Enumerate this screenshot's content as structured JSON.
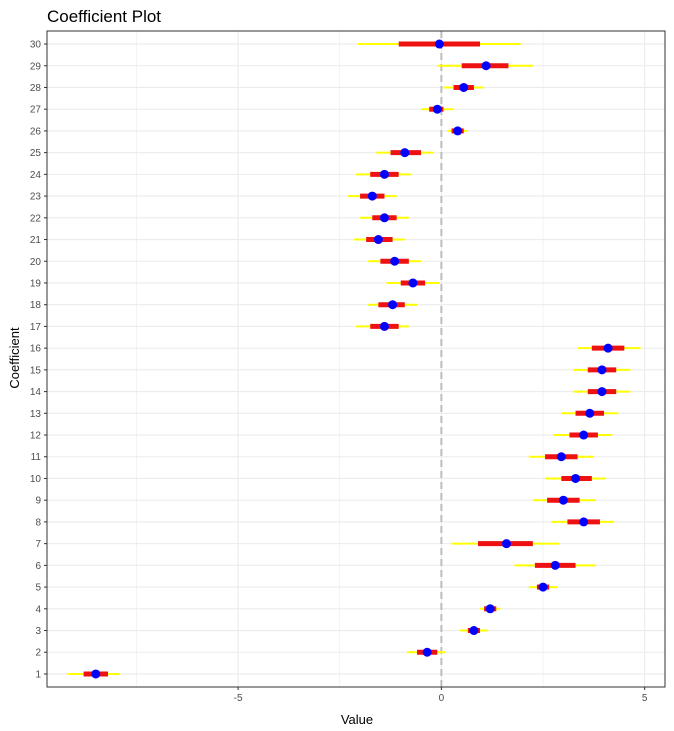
{
  "chart_data": {
    "type": "coefficient-plot",
    "title": "Coefficient Plot",
    "xlabel": "Value",
    "ylabel": "Coefficient",
    "xlim": [
      -9.7,
      5.5
    ],
    "x_ticks": [
      -5,
      0,
      5
    ],
    "x_tick_labels": [
      "-5",
      "0",
      "5"
    ],
    "reference_line_x": 0,
    "grid": true,
    "colors": {
      "point": "#0000ff",
      "inner_interval": "#ee1111",
      "outer_interval": "#ffff00",
      "reference_line": "#bdbdbd",
      "grid": "#ebebeb",
      "panel_border": "#333333"
    },
    "coefficients": [
      {
        "label": "1",
        "estimate": -8.5,
        "inner": [
          -8.8,
          -8.2
        ],
        "outer": [
          -9.2,
          -7.9
        ]
      },
      {
        "label": "2",
        "estimate": -0.35,
        "inner": [
          -0.6,
          -0.1
        ],
        "outer": [
          -0.85,
          0.1
        ]
      },
      {
        "label": "3",
        "estimate": 0.8,
        "inner": [
          0.65,
          0.95
        ],
        "outer": [
          0.45,
          1.15
        ]
      },
      {
        "label": "4",
        "estimate": 1.2,
        "inner": [
          1.05,
          1.35
        ],
        "outer": [
          0.95,
          1.45
        ]
      },
      {
        "label": "5",
        "estimate": 2.5,
        "inner": [
          2.35,
          2.65
        ],
        "outer": [
          2.15,
          2.85
        ]
      },
      {
        "label": "6",
        "estimate": 2.8,
        "inner": [
          2.3,
          3.3
        ],
        "outer": [
          1.8,
          3.8
        ]
      },
      {
        "label": "7",
        "estimate": 1.6,
        "inner": [
          0.9,
          2.25
        ],
        "outer": [
          0.25,
          2.9
        ]
      },
      {
        "label": "8",
        "estimate": 3.5,
        "inner": [
          3.1,
          3.9
        ],
        "outer": [
          2.7,
          4.25
        ]
      },
      {
        "label": "9",
        "estimate": 3.0,
        "inner": [
          2.6,
          3.4
        ],
        "outer": [
          2.25,
          3.8
        ]
      },
      {
        "label": "10",
        "estimate": 3.3,
        "inner": [
          2.95,
          3.7
        ],
        "outer": [
          2.55,
          4.05
        ]
      },
      {
        "label": "11",
        "estimate": 2.95,
        "inner": [
          2.55,
          3.35
        ],
        "outer": [
          2.15,
          3.75
        ]
      },
      {
        "label": "12",
        "estimate": 3.5,
        "inner": [
          3.15,
          3.85
        ],
        "outer": [
          2.75,
          4.2
        ]
      },
      {
        "label": "13",
        "estimate": 3.65,
        "inner": [
          3.3,
          4.0
        ],
        "outer": [
          2.95,
          4.35
        ]
      },
      {
        "label": "14",
        "estimate": 3.95,
        "inner": [
          3.6,
          4.3
        ],
        "outer": [
          3.25,
          4.65
        ]
      },
      {
        "label": "15",
        "estimate": 3.95,
        "inner": [
          3.6,
          4.3
        ],
        "outer": [
          3.25,
          4.65
        ]
      },
      {
        "label": "16",
        "estimate": 4.1,
        "inner": [
          3.7,
          4.5
        ],
        "outer": [
          3.35,
          4.9
        ]
      },
      {
        "label": "17",
        "estimate": -1.4,
        "inner": [
          -1.75,
          -1.05
        ],
        "outer": [
          -2.1,
          -0.8
        ]
      },
      {
        "label": "18",
        "estimate": -1.2,
        "inner": [
          -1.55,
          -0.9
        ],
        "outer": [
          -1.8,
          -0.6
        ]
      },
      {
        "label": "19",
        "estimate": -0.7,
        "inner": [
          -1.0,
          -0.4
        ],
        "outer": [
          -1.35,
          -0.05
        ]
      },
      {
        "label": "20",
        "estimate": -1.15,
        "inner": [
          -1.5,
          -0.8
        ],
        "outer": [
          -1.8,
          -0.5
        ]
      },
      {
        "label": "21",
        "estimate": -1.55,
        "inner": [
          -1.85,
          -1.2
        ],
        "outer": [
          -2.15,
          -0.9
        ]
      },
      {
        "label": "22",
        "estimate": -1.4,
        "inner": [
          -1.7,
          -1.1
        ],
        "outer": [
          -2.0,
          -0.8
        ]
      },
      {
        "label": "23",
        "estimate": -1.7,
        "inner": [
          -2.0,
          -1.4
        ],
        "outer": [
          -2.3,
          -1.1
        ]
      },
      {
        "label": "24",
        "estimate": -1.4,
        "inner": [
          -1.75,
          -1.05
        ],
        "outer": [
          -2.1,
          -0.75
        ]
      },
      {
        "label": "25",
        "estimate": -0.9,
        "inner": [
          -1.25,
          -0.5
        ],
        "outer": [
          -1.6,
          -0.2
        ]
      },
      {
        "label": "26",
        "estimate": 0.4,
        "inner": [
          0.25,
          0.55
        ],
        "outer": [
          0.15,
          0.65
        ]
      },
      {
        "label": "27",
        "estimate": -0.1,
        "inner": [
          -0.3,
          0.05
        ],
        "outer": [
          -0.5,
          0.3
        ]
      },
      {
        "label": "28",
        "estimate": 0.55,
        "inner": [
          0.3,
          0.8
        ],
        "outer": [
          0.05,
          1.05
        ]
      },
      {
        "label": "29",
        "estimate": 1.1,
        "inner": [
          0.5,
          1.65
        ],
        "outer": [
          -0.1,
          2.25
        ]
      },
      {
        "label": "30",
        "estimate": -0.05,
        "inner": [
          -1.05,
          0.95
        ],
        "outer": [
          -2.05,
          1.95
        ]
      }
    ]
  }
}
